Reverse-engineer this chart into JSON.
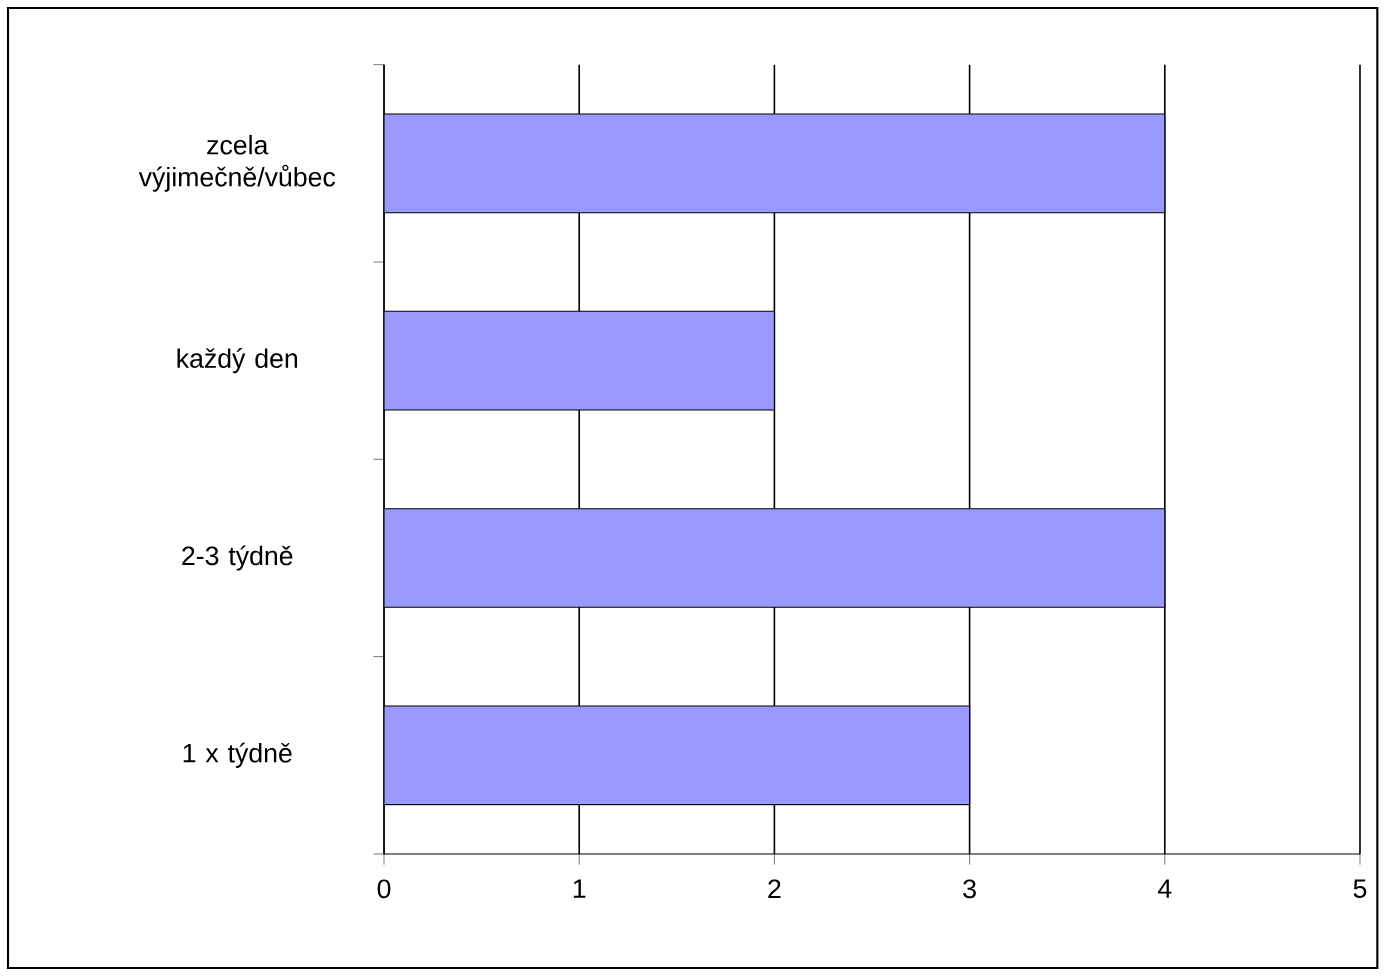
{
  "chart_data": {
    "type": "bar",
    "orientation": "horizontal",
    "categories": [
      "zcela výjimečně/vůbec",
      "každý den",
      "2-3 týdně",
      "1 x týdně"
    ],
    "values": [
      4,
      2,
      4,
      3
    ],
    "color": "#9999ff",
    "xlim": [
      0,
      5
    ],
    "xticks": [
      0,
      1,
      2,
      3,
      4,
      5
    ],
    "grid": "x"
  }
}
